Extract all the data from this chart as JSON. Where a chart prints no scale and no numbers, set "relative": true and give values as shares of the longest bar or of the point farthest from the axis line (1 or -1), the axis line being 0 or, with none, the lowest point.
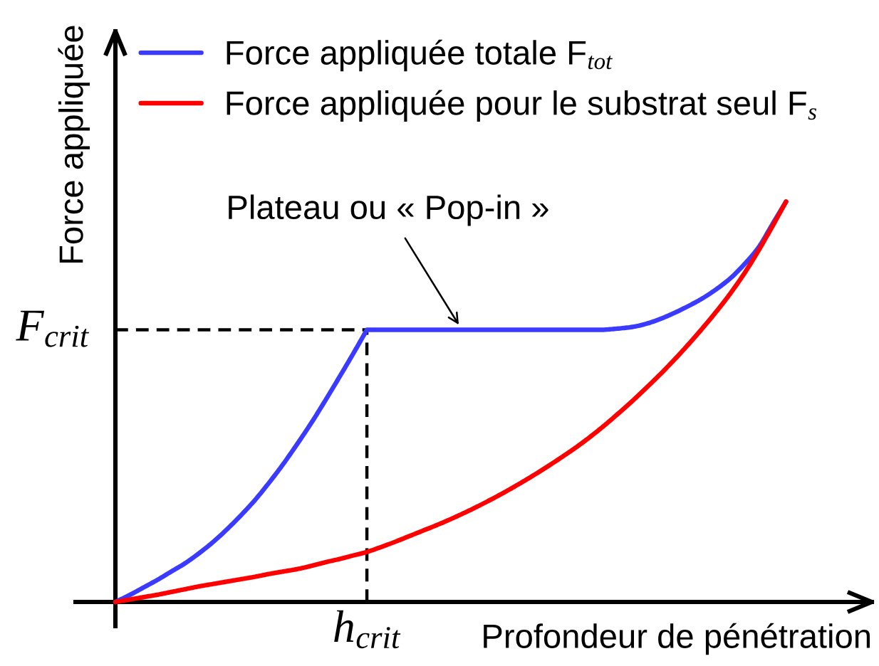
{
  "chart_data": {
    "type": "line",
    "relative": true,
    "xlabel": "Profondeur de pénétration",
    "ylabel": "Force appliquée",
    "categories": [
      null,
      null,
      null,
      null,
      null,
      null,
      null,
      null,
      null,
      null,
      null,
      null,
      null,
      null,
      null,
      null,
      null,
      null,
      null,
      null,
      null,
      null,
      null,
      null,
      null,
      null,
      null,
      null,
      null,
      null,
      null,
      null,
      null,
      null,
      null,
      null,
      null,
      null,
      null,
      null,
      null,
      null,
      null,
      null,
      null,
      null,
      null,
      null,
      null
    ],
    "series": [
      {
        "name": "Force appliquée totale F$_{tot}$",
        "color": "#3b3bff",
        "values": [
          0,
          0.017,
          0.036,
          0.055,
          0.076,
          0.097,
          0.122,
          0.15,
          0.182,
          0.217,
          0.255,
          0.298,
          0.344,
          0.394,
          0.446,
          0.502,
          0.56,
          0.619,
          0.68,
          0.68,
          0.68,
          0.68,
          0.68,
          0.68,
          0.68,
          0.68,
          0.68,
          0.68,
          0.68,
          0.68,
          0.68,
          0.68,
          0.68,
          0.68,
          0.68,
          0.68,
          0.683,
          0.687,
          0.695,
          0.707,
          0.722,
          0.739,
          0.758,
          0.781,
          0.808,
          0.843,
          0.884,
          0.942,
          1
        ]
      },
      {
        "name": "Force appliquée pour le substrat seul F$_{s}$",
        "color": "#ff0000",
        "values": [
          0,
          0.006,
          0.012,
          0.018,
          0.025,
          0.032,
          0.039,
          0.045,
          0.051,
          0.057,
          0.063,
          0.07,
          0.076,
          0.082,
          0.09,
          0.099,
          0.107,
          0.116,
          0.125,
          0.137,
          0.15,
          0.164,
          0.178,
          0.192,
          0.207,
          0.223,
          0.24,
          0.258,
          0.277,
          0.297,
          0.318,
          0.34,
          0.363,
          0.387,
          0.413,
          0.441,
          0.471,
          0.502,
          0.535,
          0.569,
          0.605,
          0.643,
          0.683,
          0.725,
          0.77,
          0.82,
          0.876,
          0.937,
          1
        ]
      }
    ],
    "ref_lines": [
      {
        "axis": "y",
        "value": 0.68,
        "label": "F$_{crit}$",
        "color": "#000000",
        "line_style": "dashed"
      }
    ],
    "annotations": [
      "Plateau ou « Pop-in »",
      "h$_{crit}$"
    ],
    "legend": "top left"
  }
}
